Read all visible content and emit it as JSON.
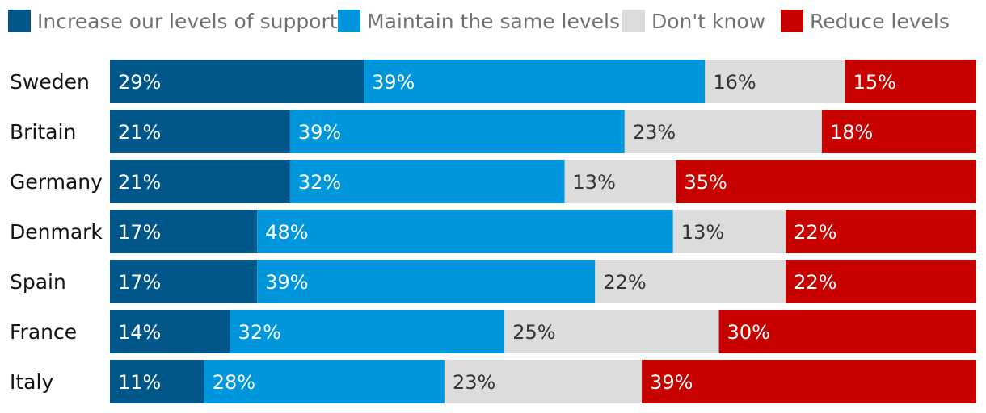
{
  "chart_data": {
    "type": "stacked-bar-horizontal",
    "categories": [
      "Sweden",
      "Britain",
      "Germany",
      "Denmark",
      "Spain",
      "France",
      "Italy"
    ],
    "series": [
      {
        "name": "Increase our levels of support",
        "color": "#005689",
        "label_color": "#ffffff",
        "values": [
          29,
          21,
          21,
          17,
          17,
          14,
          11
        ]
      },
      {
        "name": "Maintain the same levels",
        "color": "#0096dc",
        "label_color": "#ffffff",
        "values": [
          39,
          39,
          32,
          48,
          39,
          32,
          28
        ]
      },
      {
        "name": "Don't know",
        "color": "#dcdcdc",
        "label_color": "#333333",
        "values": [
          16,
          23,
          13,
          13,
          22,
          25,
          23
        ]
      },
      {
        "name": "Reduce levels",
        "color": "#c70000",
        "label_color": "#ffffff",
        "values": [
          15,
          18,
          35,
          22,
          22,
          30,
          39
        ]
      }
    ],
    "value_suffix": "%",
    "legend_position": "top"
  }
}
